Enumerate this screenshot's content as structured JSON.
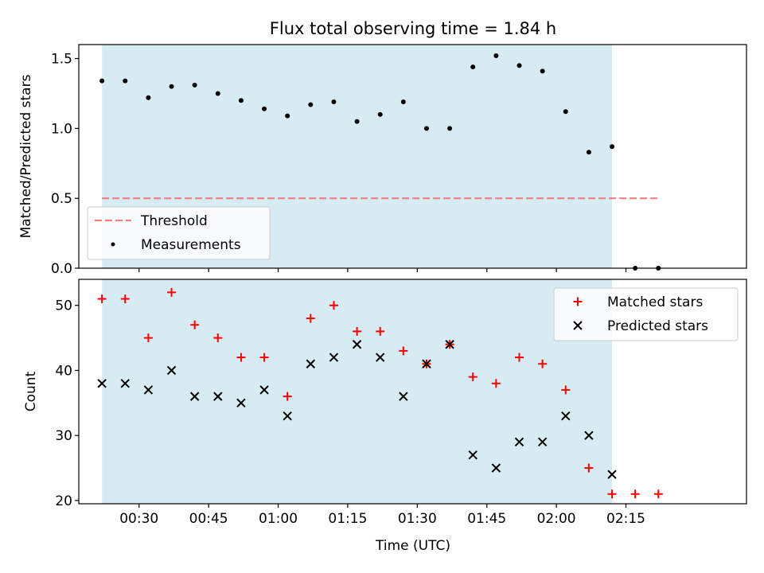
{
  "figure": {
    "title": "Flux total observing time = 1.84 h",
    "xlabel": "Time (UTC)"
  },
  "colors": {
    "shade": "#add8e6",
    "threshold": "#f08080",
    "measurement": "#000000",
    "matched": "#ff0000",
    "predicted": "#000000"
  },
  "chart_data": [
    {
      "type": "scatter",
      "name": "ratio-panel",
      "ylabel": "Matched/Predicted stars",
      "xlim_minutes": [
        17,
        161
      ],
      "ylim": [
        0,
        1.6
      ],
      "x_ticks": [
        "00:30",
        "00:45",
        "01:00",
        "01:15",
        "01:30",
        "01:45",
        "02:00",
        "02:15"
      ],
      "y_ticks": [
        "0.0",
        "0.5",
        "1.0",
        "1.5"
      ],
      "grid": false,
      "legend": {
        "placement": "lower-left",
        "entries": [
          "Threshold",
          "Measurements"
        ]
      },
      "shaded_span": [
        "00:22",
        "02:12"
      ],
      "threshold": {
        "name": "Threshold",
        "y": 0.5,
        "x_range": [
          "00:22",
          "02:22"
        ]
      },
      "series": [
        {
          "name": "Measurements",
          "x": [
            "00:22",
            "00:27",
            "00:32",
            "00:37",
            "00:42",
            "00:47",
            "00:52",
            "00:57",
            "01:02",
            "01:07",
            "01:12",
            "01:17",
            "01:22",
            "01:27",
            "01:32",
            "01:37",
            "01:42",
            "01:47",
            "01:52",
            "01:57",
            "02:02",
            "02:07",
            "02:12",
            "02:17",
            "02:22"
          ],
          "y": [
            1.34,
            1.34,
            1.22,
            1.3,
            1.31,
            1.25,
            1.2,
            1.14,
            1.09,
            1.17,
            1.19,
            1.05,
            1.1,
            1.19,
            1.0,
            1.0,
            1.44,
            1.52,
            1.45,
            1.41,
            1.12,
            0.83,
            0.87,
            0.0,
            0.0
          ]
        }
      ]
    },
    {
      "type": "scatter",
      "name": "count-panel",
      "ylabel": "Count",
      "xlim_minutes": [
        17,
        161
      ],
      "ylim": [
        19.5,
        54
      ],
      "x_ticks": [
        "00:30",
        "00:45",
        "01:00",
        "01:15",
        "01:30",
        "01:45",
        "02:00",
        "02:15"
      ],
      "y_ticks": [
        "20",
        "30",
        "40",
        "50"
      ],
      "grid": false,
      "legend": {
        "placement": "upper-right",
        "entries": [
          "Matched stars",
          "Predicted stars"
        ]
      },
      "shaded_span": [
        "00:22",
        "02:12"
      ],
      "series": [
        {
          "name": "Matched stars",
          "x": [
            "00:22",
            "00:27",
            "00:32",
            "00:37",
            "00:42",
            "00:47",
            "00:52",
            "00:57",
            "01:02",
            "01:07",
            "01:12",
            "01:17",
            "01:22",
            "01:27",
            "01:32",
            "01:37",
            "01:42",
            "01:47",
            "01:52",
            "01:57",
            "02:02",
            "02:07",
            "02:12",
            "02:17",
            "02:22"
          ],
          "y": [
            51,
            51,
            45,
            52,
            47,
            45,
            42,
            42,
            36,
            48,
            50,
            46,
            46,
            43,
            41,
            44,
            39,
            38,
            42,
            41,
            37,
            25,
            21,
            21,
            21
          ]
        },
        {
          "name": "Predicted stars",
          "x": [
            "00:22",
            "00:27",
            "00:32",
            "00:37",
            "00:42",
            "00:47",
            "00:52",
            "00:57",
            "01:02",
            "01:07",
            "01:12",
            "01:17",
            "01:22",
            "01:27",
            "01:32",
            "01:37",
            "01:42",
            "01:47",
            "01:52",
            "01:57",
            "02:02",
            "02:07",
            "02:12"
          ],
          "y": [
            38,
            38,
            37,
            40,
            36,
            36,
            35,
            37,
            33,
            41,
            42,
            44,
            42,
            36,
            41,
            44,
            27,
            25,
            29,
            29,
            33,
            30,
            24
          ]
        }
      ]
    }
  ]
}
